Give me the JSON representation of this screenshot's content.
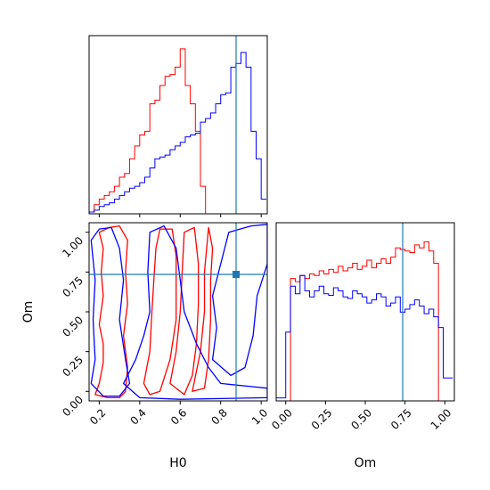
{
  "chart_data": {
    "type": "corner",
    "parameters": [
      "H0",
      "Om"
    ],
    "truths": {
      "H0": 0.885,
      "Om": 0.72
    },
    "colors": {
      "series_a": "#ff0000",
      "series_b": "#0000ff",
      "truth": "#1f77b4"
    },
    "axes": {
      "H0": {
        "label": "H0",
        "range": [
          0.15,
          1.03
        ],
        "ticks": [
          "0.2",
          "0.4",
          "0.6",
          "0.8",
          "1.0"
        ],
        "tick_values": [
          0.2,
          0.4,
          0.6,
          0.8,
          1.0
        ]
      },
      "Om": {
        "label": "Om",
        "range": [
          -0.06,
          1.06
        ],
        "ticks": [
          "0.00",
          "0.25",
          "0.50",
          "0.75",
          "1.00"
        ],
        "tick_values": [
          0.0,
          0.25,
          0.5,
          0.75,
          1.0
        ]
      }
    },
    "hist_H0": {
      "bin_edges": [
        0.15,
        0.175,
        0.2,
        0.225,
        0.25,
        0.275,
        0.3,
        0.325,
        0.35,
        0.375,
        0.4,
        0.425,
        0.45,
        0.475,
        0.5,
        0.525,
        0.55,
        0.575,
        0.6,
        0.625,
        0.65,
        0.675,
        0.7,
        0.725,
        0.75,
        0.775,
        0.8,
        0.825,
        0.85,
        0.875,
        0.9,
        0.925,
        0.95,
        0.975,
        1.0,
        1.025
      ],
      "series_a": [
        0.01,
        0.05,
        0.08,
        0.1,
        0.12,
        0.15,
        0.2,
        0.22,
        0.3,
        0.37,
        0.43,
        0.45,
        0.6,
        0.62,
        0.7,
        0.75,
        0.76,
        0.8,
        0.9,
        0.7,
        0.6,
        0.45,
        0.15,
        0.0,
        0,
        0,
        0,
        0,
        0,
        0,
        0,
        0,
        0,
        0,
        0
      ],
      "series_b": [
        0.01,
        0.02,
        0.04,
        0.05,
        0.06,
        0.08,
        0.1,
        0.12,
        0.14,
        0.15,
        0.17,
        0.2,
        0.25,
        0.3,
        0.31,
        0.32,
        0.35,
        0.37,
        0.39,
        0.42,
        0.43,
        0.44,
        0.5,
        0.52,
        0.55,
        0.6,
        0.65,
        0.66,
        0.8,
        0.82,
        0.88,
        0.8,
        0.45,
        0.3,
        0.08
      ]
    },
    "hist_Om": {
      "bin_edges": [
        -0.06,
        0.0,
        0.03,
        0.06,
        0.09,
        0.12,
        0.15,
        0.18,
        0.21,
        0.24,
        0.27,
        0.3,
        0.33,
        0.36,
        0.39,
        0.42,
        0.45,
        0.48,
        0.51,
        0.54,
        0.57,
        0.6,
        0.63,
        0.66,
        0.69,
        0.72,
        0.75,
        0.78,
        0.81,
        0.84,
        0.87,
        0.9,
        0.93,
        0.96,
        0.99,
        1.02,
        1.05
      ],
      "series_a": [
        0,
        0,
        0.8,
        0.78,
        0.82,
        0.8,
        0.83,
        0.82,
        0.85,
        0.83,
        0.86,
        0.84,
        0.88,
        0.85,
        0.87,
        0.9,
        0.86,
        0.88,
        0.92,
        0.87,
        0.9,
        0.93,
        0.9,
        0.94,
        1.0,
        0.99,
        0.98,
        0.97,
        1.02,
        1.0,
        1.04,
        0.98,
        0.9,
        0.0,
        0,
        0
      ],
      "series_b": [
        0.02,
        0.45,
        0.75,
        0.7,
        0.82,
        0.72,
        0.68,
        0.72,
        0.75,
        0.7,
        0.69,
        0.74,
        0.72,
        0.68,
        0.67,
        0.72,
        0.7,
        0.68,
        0.64,
        0.66,
        0.7,
        0.68,
        0.62,
        0.64,
        0.68,
        0.58,
        0.6,
        0.63,
        0.66,
        0.62,
        0.57,
        0.6,
        0.55,
        0.48,
        0.15,
        0.15
      ]
    },
    "contours_2d": {
      "series_a": [
        [
          [
            0.18,
            -0.02
          ],
          [
            0.2,
            0.05
          ],
          [
            0.22,
            0.18
          ],
          [
            0.22,
            0.3
          ],
          [
            0.2,
            0.42
          ],
          [
            0.22,
            0.6
          ],
          [
            0.21,
            0.75
          ],
          [
            0.22,
            0.9
          ],
          [
            0.2,
            1.0
          ],
          [
            0.25,
            1.03
          ],
          [
            0.3,
            1.04
          ],
          [
            0.34,
            0.95
          ],
          [
            0.33,
            0.75
          ],
          [
            0.34,
            0.55
          ],
          [
            0.32,
            0.35
          ],
          [
            0.34,
            0.15
          ],
          [
            0.33,
            0.0
          ],
          [
            0.3,
            -0.04
          ],
          [
            0.24,
            -0.04
          ]
        ],
        [
          [
            0.42,
            0.05
          ],
          [
            0.45,
            0.25
          ],
          [
            0.46,
            0.5
          ],
          [
            0.47,
            0.7
          ],
          [
            0.48,
            0.9
          ],
          [
            0.5,
            1.02
          ],
          [
            0.56,
            1.02
          ],
          [
            0.58,
            0.85
          ],
          [
            0.58,
            0.65
          ],
          [
            0.58,
            0.45
          ],
          [
            0.55,
            0.2
          ],
          [
            0.5,
            0.0
          ],
          [
            0.45,
            -0.02
          ]
        ],
        [
          [
            0.55,
            0.05
          ],
          [
            0.58,
            0.25
          ],
          [
            0.6,
            0.5
          ],
          [
            0.61,
            0.75
          ],
          [
            0.62,
            1.0
          ],
          [
            0.67,
            1.03
          ],
          [
            0.69,
            0.8
          ],
          [
            0.69,
            0.55
          ],
          [
            0.68,
            0.3
          ],
          [
            0.66,
            0.1
          ],
          [
            0.62,
            -0.02
          ]
        ],
        [
          [
            0.66,
            0.0
          ],
          [
            0.7,
            0.25
          ],
          [
            0.72,
            0.5
          ],
          [
            0.72,
            0.75
          ],
          [
            0.74,
            1.03
          ],
          [
            0.76,
            0.9
          ],
          [
            0.75,
            0.7
          ],
          [
            0.75,
            0.45
          ],
          [
            0.74,
            0.2
          ],
          [
            0.72,
            0.02
          ]
        ]
      ],
      "series_b": [
        [
          [
            0.16,
            0.05
          ],
          [
            0.18,
            0.2
          ],
          [
            0.17,
            0.45
          ],
          [
            0.18,
            0.7
          ],
          [
            0.16,
            0.95
          ],
          [
            0.2,
            1.02
          ],
          [
            0.26,
            1.03
          ],
          [
            0.3,
            0.9
          ],
          [
            0.32,
            0.7
          ],
          [
            0.3,
            0.45
          ],
          [
            0.33,
            0.2
          ],
          [
            0.35,
            0.05
          ],
          [
            0.3,
            -0.03
          ],
          [
            0.22,
            -0.03
          ]
        ],
        [
          [
            0.32,
            0.05
          ],
          [
            0.38,
            0.2
          ],
          [
            0.42,
            0.35
          ],
          [
            0.45,
            0.5
          ],
          [
            0.44,
            0.75
          ],
          [
            0.45,
            1.0
          ],
          [
            0.52,
            1.04
          ],
          [
            0.58,
            0.9
          ],
          [
            0.6,
            0.7
          ],
          [
            0.62,
            0.5
          ],
          [
            0.68,
            0.3
          ],
          [
            0.74,
            0.15
          ],
          [
            0.8,
            0.05
          ],
          [
            0.95,
            0.03
          ],
          [
            1.03,
            0.02
          ],
          [
            1.03,
            -0.04
          ],
          [
            0.6,
            -0.05
          ],
          [
            0.4,
            -0.04
          ]
        ],
        [
          [
            0.76,
            0.2
          ],
          [
            0.78,
            0.4
          ],
          [
            0.76,
            0.6
          ],
          [
            0.8,
            0.8
          ],
          [
            0.84,
            1.0
          ],
          [
            0.95,
            1.04
          ],
          [
            1.03,
            1.05
          ],
          [
            1.03,
            0.8
          ],
          [
            0.98,
            0.6
          ],
          [
            0.96,
            0.35
          ],
          [
            0.92,
            0.15
          ],
          [
            0.85,
            0.1
          ]
        ]
      ]
    }
  }
}
